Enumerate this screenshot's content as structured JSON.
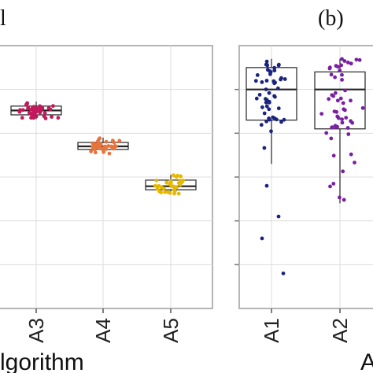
{
  "panel_labels": {
    "left": "l",
    "right": "(b)"
  },
  "chart_data": [
    {
      "type": "box",
      "xlabel": "lgorithm",
      "categories": [
        "A3",
        "A4",
        "A5"
      ],
      "ylim": [
        0,
        6
      ],
      "grid": true,
      "series": [
        {
          "category": "A3",
          "color": "#c2185b",
          "n": 45,
          "box": {
            "min": 4.32,
            "q1": 4.42,
            "median": 4.52,
            "q3": 4.62,
            "max": 4.72
          }
        },
        {
          "category": "A4",
          "color": "#e8743b",
          "n": 40,
          "box": {
            "min": 3.53,
            "q1": 3.63,
            "median": 3.7,
            "q3": 3.79,
            "max": 3.9
          }
        },
        {
          "category": "A5",
          "color": "#e6b800",
          "n": 35,
          "box": {
            "min": 2.6,
            "q1": 2.71,
            "median": 2.79,
            "q3": 2.93,
            "max": 3.05
          }
        }
      ]
    },
    {
      "type": "box",
      "xlabel": "A",
      "categories": [
        "A1",
        "A2"
      ],
      "ylim": [
        0,
        6
      ],
      "grid": true,
      "series": [
        {
          "category": "A1",
          "color": "#1a237e",
          "n": 50,
          "box": {
            "min": 3.3,
            "q1": 4.3,
            "median": 5.0,
            "q3": 5.5,
            "max": 5.7
          }
        },
        {
          "category": "A2",
          "color": "#7b1fa2",
          "n": 55,
          "box": {
            "min": 2.4,
            "q1": 4.1,
            "median": 5.0,
            "q3": 5.4,
            "max": 5.7
          }
        }
      ],
      "outliers": [
        {
          "category": "A1",
          "values": [
            2.8,
            2.1,
            1.6,
            0.8
          ]
        }
      ]
    }
  ]
}
